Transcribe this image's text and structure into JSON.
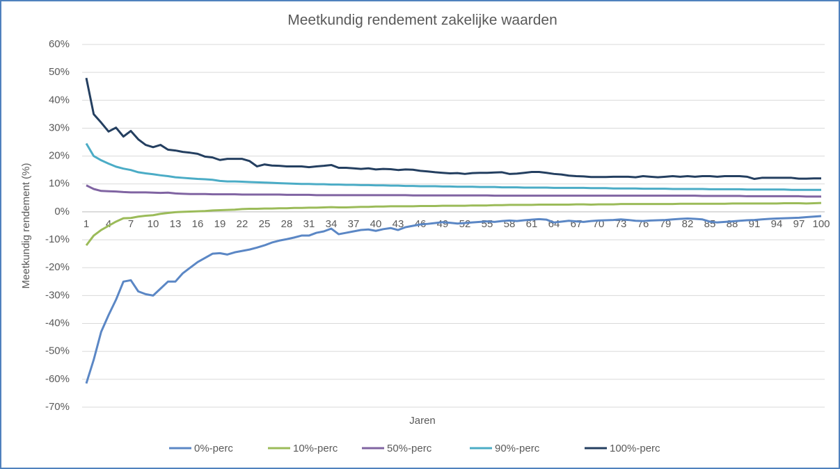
{
  "chart_data": {
    "type": "line",
    "title": "Meetkundig rendement zakelijke waarden",
    "x_label": "Jaren",
    "y_label": "Meetkundig rendement (%)",
    "x": [
      1,
      2,
      3,
      4,
      5,
      6,
      7,
      8,
      9,
      10,
      11,
      12,
      13,
      14,
      15,
      16,
      17,
      18,
      19,
      20,
      21,
      22,
      23,
      24,
      25,
      26,
      27,
      28,
      29,
      30,
      31,
      32,
      33,
      34,
      35,
      36,
      37,
      38,
      39,
      40,
      41,
      42,
      43,
      44,
      45,
      46,
      47,
      48,
      49,
      50,
      51,
      52,
      53,
      54,
      55,
      56,
      57,
      58,
      59,
      60,
      61,
      62,
      63,
      64,
      65,
      66,
      67,
      68,
      69,
      70,
      71,
      72,
      73,
      74,
      75,
      76,
      77,
      78,
      79,
      80,
      81,
      82,
      83,
      84,
      85,
      86,
      87,
      88,
      89,
      90,
      91,
      92,
      93,
      94,
      95,
      96,
      97,
      98,
      99,
      100
    ],
    "xlim": [
      1,
      100
    ],
    "xticks": [
      1,
      4,
      7,
      10,
      13,
      16,
      19,
      22,
      25,
      28,
      31,
      34,
      37,
      40,
      43,
      46,
      49,
      52,
      55,
      58,
      61,
      64,
      67,
      70,
      73,
      76,
      79,
      82,
      85,
      88,
      91,
      94,
      97,
      100
    ],
    "ylim": [
      -70,
      60
    ],
    "yticks": [
      {
        "value": -70,
        "label": "-70%"
      },
      {
        "value": -60,
        "label": "-60%"
      },
      {
        "value": -50,
        "label": "-50%"
      },
      {
        "value": -40,
        "label": "-40%"
      },
      {
        "value": -30,
        "label": "-30%"
      },
      {
        "value": -20,
        "label": "-20%"
      },
      {
        "value": -10,
        "label": "-10%"
      },
      {
        "value": 0,
        "label": "0%"
      },
      {
        "value": 10,
        "label": "10%"
      },
      {
        "value": 20,
        "label": "20%"
      },
      {
        "value": 30,
        "label": "30%"
      },
      {
        "value": 40,
        "label": "40%"
      },
      {
        "value": 50,
        "label": "50%"
      },
      {
        "value": 60,
        "label": "60%"
      }
    ],
    "grid": true,
    "legend": "bottom",
    "series": [
      {
        "name": "0%-perc",
        "color": "#5b87c5",
        "values": [
          -61.5,
          -53,
          -43,
          -37,
          -31.5,
          -25,
          -24.5,
          -28.5,
          -29.5,
          -30,
          -27.5,
          -25,
          -25,
          -22,
          -20,
          -18,
          -16.5,
          -15,
          -14.8,
          -15.3,
          -14.5,
          -14,
          -13.5,
          -12.8,
          -12,
          -11,
          -10.3,
          -9.8,
          -9.2,
          -8.5,
          -8.5,
          -7.5,
          -7,
          -6,
          -8,
          -7.5,
          -7,
          -6.5,
          -6.3,
          -6.8,
          -6.2,
          -5.8,
          -6.5,
          -5.5,
          -5,
          -4.5,
          -4.3,
          -4,
          -3.7,
          -3.9,
          -4.2,
          -4,
          -3.8,
          -3.6,
          -3.4,
          -3.6,
          -3.3,
          -3.1,
          -3.3,
          -3,
          -2.8,
          -2.6,
          -2.8,
          -3.8,
          -3.5,
          -3.2,
          -3.4,
          -3.6,
          -3.3,
          -3.1,
          -3,
          -2.9,
          -2.7,
          -2.9,
          -3.2,
          -3.3,
          -3.1,
          -3,
          -2.9,
          -2.7,
          -2.5,
          -2.4,
          -2.5,
          -2.7,
          -3.5,
          -3.8,
          -3.6,
          -3.4,
          -3.2,
          -3,
          -2.9,
          -2.7,
          -2.5,
          -2.4,
          -2.3,
          -2.2,
          -2.1,
          -1.9,
          -1.7,
          -1.5
        ]
      },
      {
        "name": "10%-perc",
        "color": "#9bbb59",
        "values": [
          -12,
          -8.5,
          -6.5,
          -5,
          -3.5,
          -2.3,
          -2.2,
          -1.7,
          -1.4,
          -1.2,
          -0.7,
          -0.4,
          -0.1,
          0,
          0.1,
          0.2,
          0.3,
          0.5,
          0.6,
          0.7,
          0.8,
          1.0,
          1.1,
          1.1,
          1.2,
          1.2,
          1.3,
          1.3,
          1.4,
          1.4,
          1.5,
          1.5,
          1.6,
          1.7,
          1.6,
          1.6,
          1.7,
          1.8,
          1.8,
          1.9,
          1.9,
          2.0,
          2.0,
          2.0,
          2.0,
          2.1,
          2.1,
          2.1,
          2.2,
          2.2,
          2.2,
          2.2,
          2.3,
          2.3,
          2.3,
          2.4,
          2.4,
          2.5,
          2.5,
          2.5,
          2.5,
          2.6,
          2.6,
          2.6,
          2.6,
          2.6,
          2.7,
          2.7,
          2.6,
          2.7,
          2.7,
          2.7,
          2.8,
          2.8,
          2.8,
          2.8,
          2.8,
          2.8,
          2.8,
          2.8,
          2.9,
          2.9,
          2.9,
          2.9,
          2.9,
          2.9,
          2.9,
          3.0,
          3.0,
          3.0,
          3.0,
          3.0,
          3.0,
          3.0,
          3.1,
          3.1,
          3.1,
          3.0,
          3.1,
          3.2
        ]
      },
      {
        "name": "50%-perc",
        "color": "#8064a2",
        "values": [
          9.5,
          8.2,
          7.5,
          7.4,
          7.3,
          7.1,
          7.0,
          7.0,
          7.0,
          6.9,
          6.8,
          6.9,
          6.6,
          6.5,
          6.4,
          6.4,
          6.4,
          6.3,
          6.3,
          6.3,
          6.3,
          6.2,
          6.2,
          6.2,
          6.2,
          6.2,
          6.2,
          6.1,
          6.1,
          6.1,
          6.1,
          6.0,
          6.0,
          6.0,
          6.0,
          6.0,
          6.0,
          6.0,
          6.0,
          6.0,
          6.0,
          6.0,
          6.0,
          6.0,
          5.9,
          5.9,
          5.9,
          5.9,
          5.9,
          5.9,
          5.9,
          5.9,
          5.9,
          5.9,
          5.9,
          5.8,
          5.8,
          5.8,
          5.8,
          5.8,
          5.8,
          5.8,
          5.8,
          5.8,
          5.8,
          5.8,
          5.8,
          5.8,
          5.8,
          5.8,
          5.8,
          5.8,
          5.8,
          5.8,
          5.8,
          5.8,
          5.8,
          5.8,
          5.8,
          5.8,
          5.8,
          5.8,
          5.8,
          5.7,
          5.7,
          5.7,
          5.7,
          5.7,
          5.7,
          5.6,
          5.6,
          5.6,
          5.6,
          5.6,
          5.6,
          5.6,
          5.6,
          5.5,
          5.5,
          5.5
        ]
      },
      {
        "name": "90%-perc",
        "color": "#4bacc6",
        "values": [
          24.5,
          20,
          18.5,
          17.3,
          16.2,
          15.5,
          15,
          14.2,
          13.8,
          13.5,
          13.1,
          12.8,
          12.4,
          12.2,
          12,
          11.8,
          11.7,
          11.5,
          11.1,
          10.9,
          10.9,
          10.8,
          10.7,
          10.6,
          10.5,
          10.4,
          10.3,
          10.2,
          10.1,
          10.0,
          10.0,
          9.9,
          9.9,
          9.8,
          9.8,
          9.7,
          9.7,
          9.6,
          9.6,
          9.5,
          9.5,
          9.4,
          9.4,
          9.3,
          9.3,
          9.2,
          9.2,
          9.2,
          9.1,
          9.1,
          9.0,
          9.0,
          9.0,
          8.9,
          8.9,
          8.9,
          8.8,
          8.8,
          8.8,
          8.7,
          8.7,
          8.7,
          8.7,
          8.6,
          8.6,
          8.6,
          8.6,
          8.6,
          8.5,
          8.5,
          8.5,
          8.4,
          8.4,
          8.4,
          8.4,
          8.3,
          8.3,
          8.3,
          8.3,
          8.2,
          8.2,
          8.2,
          8.2,
          8.2,
          8.1,
          8.1,
          8.1,
          8.1,
          8.1,
          8.0,
          8.0,
          8.0,
          8.0,
          8.0,
          8.0,
          7.9,
          7.9,
          7.9,
          7.9,
          7.9
        ]
      },
      {
        "name": "100%-perc",
        "color": "#243f60",
        "values": [
          48,
          35,
          32,
          28.8,
          30.2,
          27,
          29,
          26,
          24,
          23.2,
          24,
          22.3,
          22,
          21.5,
          21.2,
          20.8,
          19.8,
          19.5,
          18.6,
          19,
          19,
          19,
          18.2,
          16.3,
          17,
          16.6,
          16.5,
          16.3,
          16.3,
          16.3,
          16,
          16.3,
          16.5,
          16.8,
          15.8,
          15.8,
          15.6,
          15.4,
          15.6,
          15.2,
          15.4,
          15.3,
          15,
          15.2,
          15.1,
          14.7,
          14.5,
          14.2,
          14,
          13.8,
          13.9,
          13.6,
          13.9,
          14,
          14,
          14.1,
          14.2,
          13.6,
          13.7,
          14,
          14.3,
          14.3,
          14,
          13.6,
          13.4,
          13,
          12.8,
          12.7,
          12.5,
          12.5,
          12.5,
          12.6,
          12.6,
          12.6,
          12.4,
          12.8,
          12.6,
          12.4,
          12.6,
          12.8,
          12.6,
          12.8,
          12.6,
          12.8,
          12.8,
          12.6,
          12.8,
          12.8,
          12.8,
          12.6,
          11.8,
          12.2,
          12.2,
          12.2,
          12.2,
          12.2,
          11.9,
          11.9,
          12,
          12
        ]
      }
    ]
  }
}
